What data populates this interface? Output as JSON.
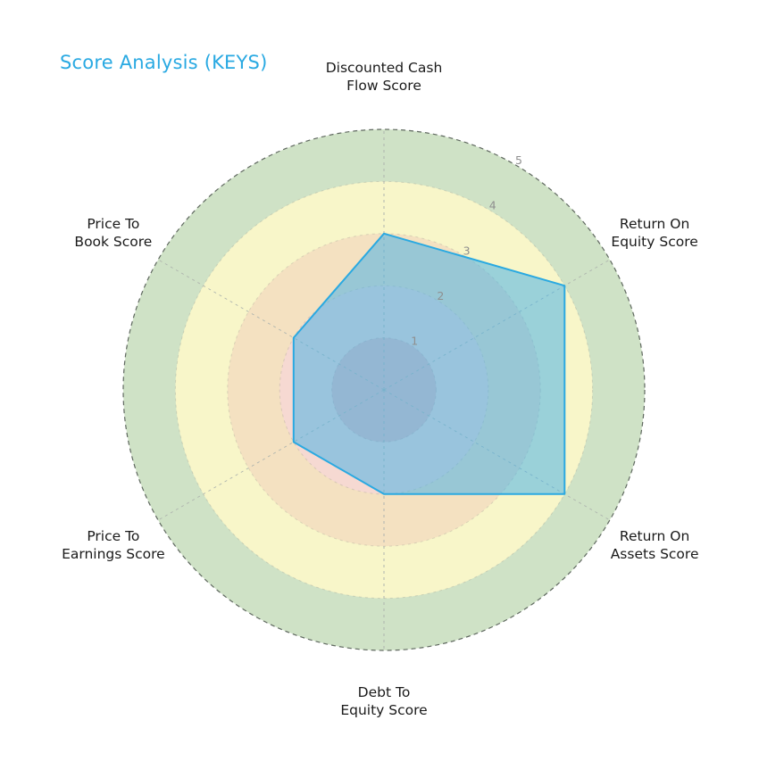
{
  "title": "Score Analysis (KEYS)",
  "chart_data": {
    "type": "radar",
    "title": "Score Analysis (KEYS)",
    "categories": [
      "Discounted Cash\nFlow Score",
      "Return On\nEquity Score",
      "Return On\nAssets Score",
      "Debt To\nEquity Score",
      "Price To\nEarnings Score",
      "Price To\nBook Score"
    ],
    "series": [
      {
        "name": "KEYS",
        "values": [
          3,
          4,
          4,
          2,
          2,
          2
        ]
      }
    ],
    "rlim": [
      0,
      5
    ],
    "radial_ticks": [
      "1",
      "2",
      "3",
      "4",
      "5"
    ],
    "tick_angle_deg": 30,
    "grid": "dashed",
    "legend_position": "none",
    "ring_colors": [
      "#ecbcbc",
      "#f6d9d2",
      "#f4e1c1",
      "#f8f6c9",
      "#cfe2c6"
    ],
    "polygon_fill": "rgba(77,178,230,0.55)",
    "polygon_stroke": "#2aa9e1",
    "spoke_color": "#aeb4ae",
    "outer_ring_stroke": "#5f685f",
    "tick_color": "#8f8f8f",
    "title_color": "#29a9e2",
    "label_color": "#1a1a1a"
  }
}
